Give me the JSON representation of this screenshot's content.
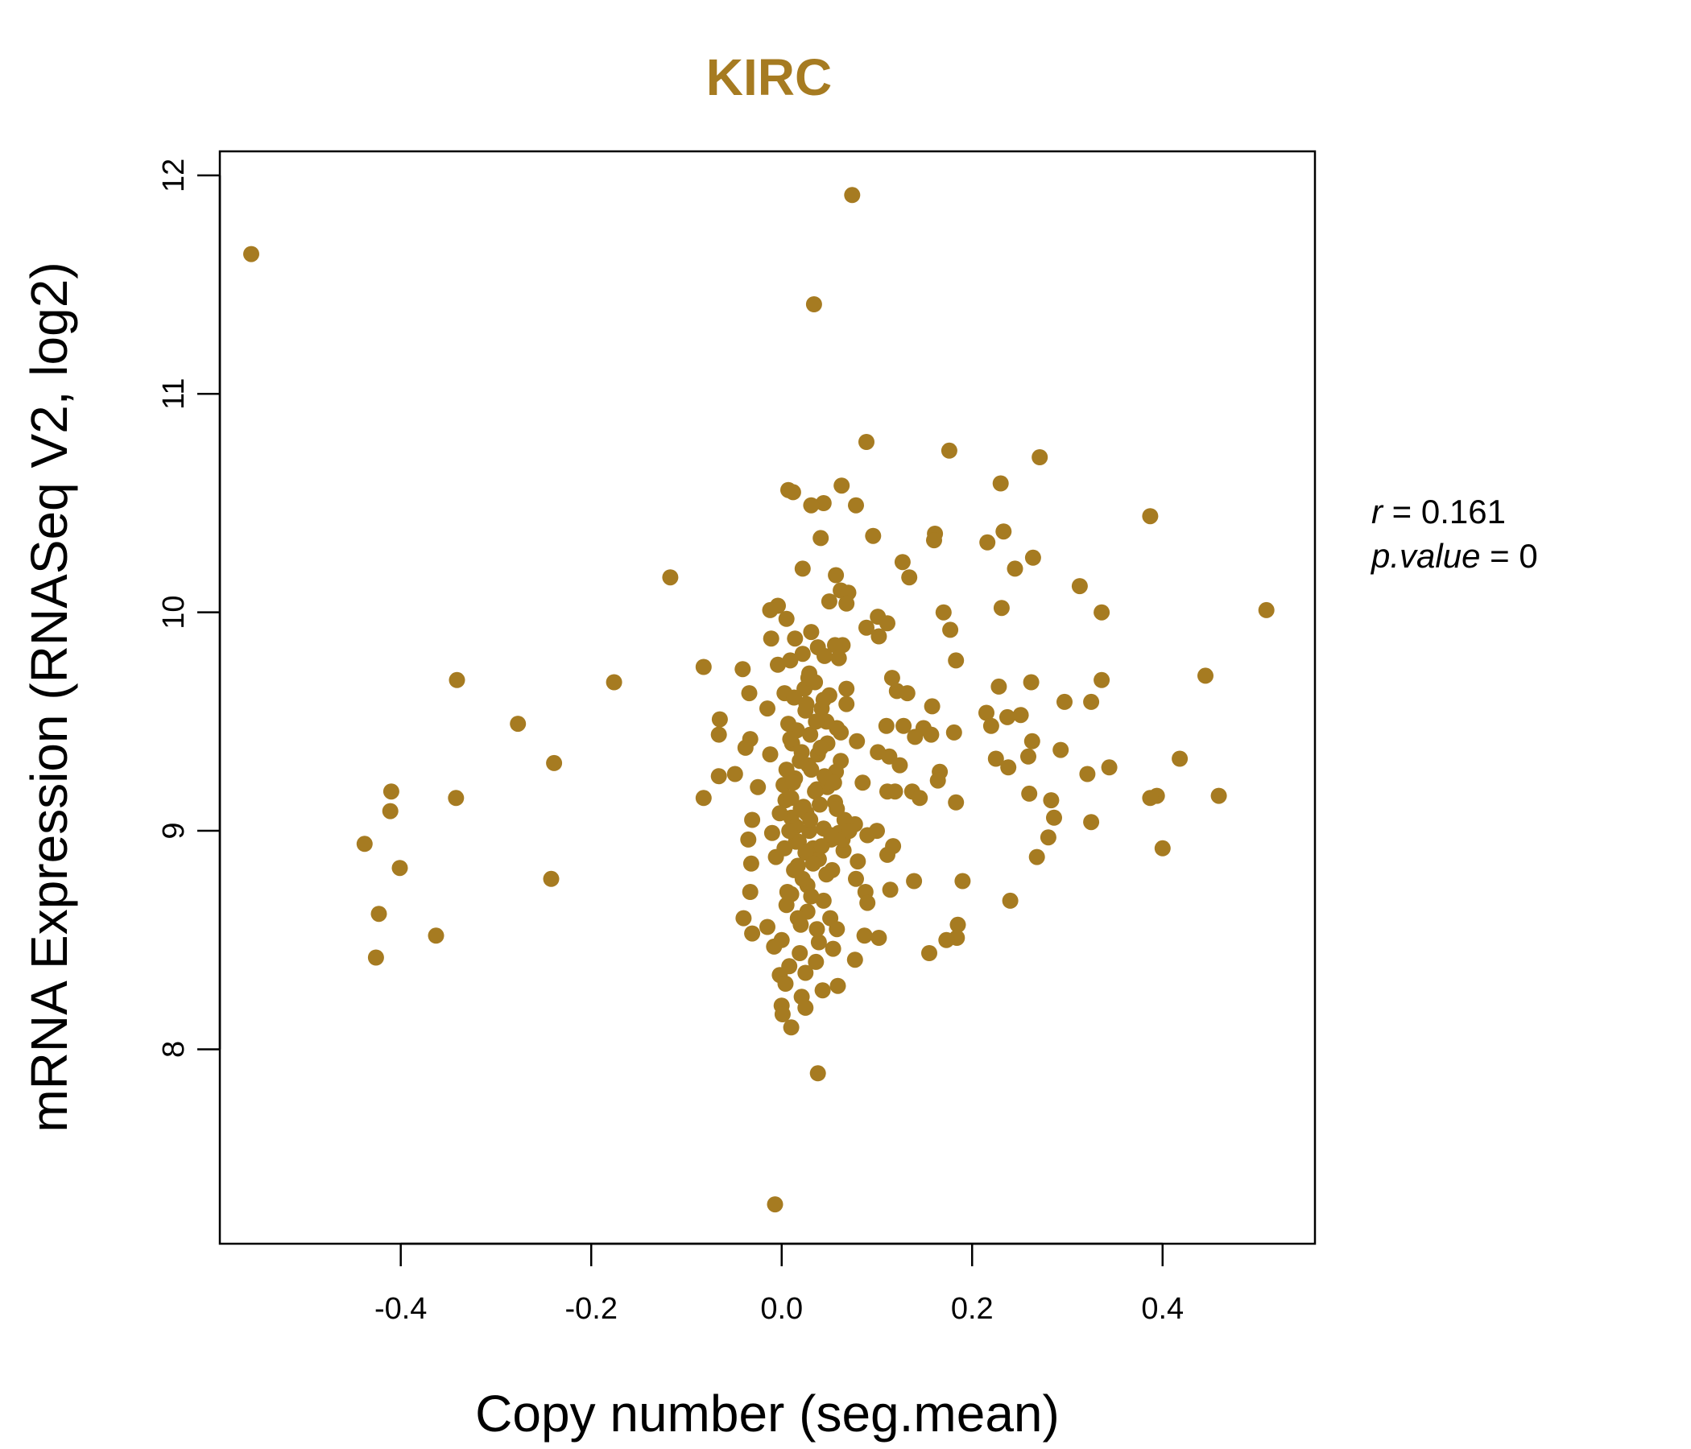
{
  "chart_data": {
    "type": "scatter",
    "title": "KIRC",
    "xlabel": "Copy number (seg.mean)",
    "ylabel": "mRNA Expression (RNASeq V2, log2)",
    "xlim": [
      -0.59,
      0.56
    ],
    "ylim": [
      7.11,
      12.11
    ],
    "x_ticks": [
      -0.4,
      -0.2,
      0.0,
      0.2,
      0.4
    ],
    "x_tick_labels": [
      "-0.4",
      "-0.2",
      "0.0",
      "0.2",
      "0.4"
    ],
    "y_ticks": [
      8,
      9,
      10,
      11,
      12
    ],
    "y_tick_labels": [
      "8",
      "9",
      "10",
      "11",
      "12"
    ],
    "point_color": "#A67B21",
    "title_color": "#A67B21",
    "stats": {
      "r_label": "r",
      "r_value": "0.161",
      "p_label": "p.value",
      "p_value": "0"
    },
    "points": [
      [
        -0.557,
        11.64
      ],
      [
        0.074,
        11.91
      ],
      [
        0.034,
        11.41
      ],
      [
        0.089,
        10.78
      ],
      [
        0.176,
        10.74
      ],
      [
        0.271,
        10.71
      ],
      [
        0.23,
        10.59
      ],
      [
        0.063,
        10.58
      ],
      [
        0.012,
        10.55
      ],
      [
        0.007,
        10.56
      ],
      [
        0.044,
        10.5
      ],
      [
        0.031,
        10.49
      ],
      [
        0.078,
        10.49
      ],
      [
        0.387,
        10.44
      ],
      [
        0.233,
        10.37
      ],
      [
        0.161,
        10.36
      ],
      [
        0.096,
        10.35
      ],
      [
        0.041,
        10.34
      ],
      [
        0.16,
        10.33
      ],
      [
        0.216,
        10.32
      ],
      [
        0.264,
        10.25
      ],
      [
        0.127,
        10.23
      ],
      [
        0.022,
        10.2
      ],
      [
        0.245,
        10.2
      ],
      [
        0.057,
        10.17
      ],
      [
        0.134,
        10.16
      ],
      [
        -0.117,
        10.16
      ],
      [
        0.313,
        10.12
      ],
      [
        0.062,
        10.1
      ],
      [
        0.07,
        10.09
      ],
      [
        0.05,
        10.05
      ],
      [
        0.068,
        10.04
      ],
      [
        -0.004,
        10.03
      ],
      [
        -0.012,
        10.01
      ],
      [
        0.231,
        10.02
      ],
      [
        0.509,
        10.01
      ],
      [
        0.336,
        10.0
      ],
      [
        0.17,
        10.0
      ],
      [
        0.101,
        9.98
      ],
      [
        0.005,
        9.97
      ],
      [
        0.089,
        9.93
      ],
      [
        0.111,
        9.95
      ],
      [
        0.031,
        9.91
      ],
      [
        0.177,
        9.92
      ],
      [
        0.102,
        9.89
      ],
      [
        0.064,
        9.85
      ],
      [
        0.014,
        9.88
      ],
      [
        -0.011,
        9.88
      ],
      [
        0.056,
        9.85
      ],
      [
        0.038,
        9.84
      ],
      [
        0.022,
        9.81
      ],
      [
        0.183,
        9.78
      ],
      [
        0.045,
        9.8
      ],
      [
        0.009,
        9.78
      ],
      [
        -0.004,
        9.76
      ],
      [
        -0.082,
        9.75
      ],
      [
        0.06,
        9.79
      ],
      [
        -0.041,
        9.74
      ],
      [
        0.029,
        9.72
      ],
      [
        0.035,
        9.68
      ],
      [
        0.116,
        9.7
      ],
      [
        0.445,
        9.71
      ],
      [
        0.336,
        9.69
      ],
      [
        -0.341,
        9.69
      ],
      [
        -0.176,
        9.68
      ],
      [
        0.262,
        9.68
      ],
      [
        0.228,
        9.66
      ],
      [
        0.068,
        9.65
      ],
      [
        0.121,
        9.64
      ],
      [
        0.132,
        9.63
      ],
      [
        -0.034,
        9.63
      ],
      [
        0.003,
        9.63
      ],
      [
        0.05,
        9.62
      ],
      [
        0.013,
        9.61
      ],
      [
        0.297,
        9.59
      ],
      [
        0.325,
        9.59
      ],
      [
        0.068,
        9.58
      ],
      [
        0.158,
        9.57
      ],
      [
        0.042,
        9.56
      ],
      [
        -0.015,
        9.56
      ],
      [
        0.025,
        9.55
      ],
      [
        0.215,
        9.54
      ],
      [
        0.251,
        9.53
      ],
      [
        0.237,
        9.52
      ],
      [
        -0.065,
        9.51
      ],
      [
        0.047,
        9.5
      ],
      [
        0.007,
        9.49
      ],
      [
        0.11,
        9.48
      ],
      [
        -0.277,
        9.49
      ],
      [
        0.128,
        9.48
      ],
      [
        0.149,
        9.47
      ],
      [
        0.22,
        9.48
      ],
      [
        0.058,
        9.47
      ],
      [
        0.062,
        9.45
      ],
      [
        0.181,
        9.45
      ],
      [
        0.03,
        9.44
      ],
      [
        0.157,
        9.44
      ],
      [
        -0.066,
        9.44
      ],
      [
        0.14,
        9.43
      ],
      [
        -0.033,
        9.42
      ],
      [
        0.079,
        9.41
      ],
      [
        0.011,
        9.4
      ],
      [
        0.263,
        9.41
      ],
      [
        -0.038,
        9.38
      ],
      [
        0.293,
        9.37
      ],
      [
        0.021,
        9.36
      ],
      [
        0.101,
        9.36
      ],
      [
        0.113,
        9.34
      ],
      [
        0.259,
        9.34
      ],
      [
        -0.012,
        9.35
      ],
      [
        0.418,
        9.33
      ],
      [
        0.225,
        9.33
      ],
      [
        0.062,
        9.32
      ],
      [
        0.124,
        9.3
      ],
      [
        -0.239,
        9.31
      ],
      [
        0.238,
        9.29
      ],
      [
        0.344,
        9.29
      ],
      [
        0.031,
        9.28
      ],
      [
        0.166,
        9.27
      ],
      [
        0.321,
        9.26
      ],
      [
        0.057,
        9.27
      ],
      [
        -0.049,
        9.26
      ],
      [
        -0.066,
        9.25
      ],
      [
        0.164,
        9.23
      ],
      [
        0.014,
        9.24
      ],
      [
        0.085,
        9.22
      ],
      [
        0.002,
        9.21
      ],
      [
        -0.025,
        9.2
      ],
      [
        0.048,
        9.2
      ],
      [
        0.037,
        9.19
      ],
      [
        -0.41,
        9.18
      ],
      [
        0.119,
        9.18
      ],
      [
        0.111,
        9.18
      ],
      [
        0.137,
        9.18
      ],
      [
        0.26,
        9.17
      ],
      [
        0.459,
        9.16
      ],
      [
        0.394,
        9.16
      ],
      [
        0.387,
        9.15
      ],
      [
        0.145,
        9.15
      ],
      [
        -0.082,
        9.15
      ],
      [
        -0.342,
        9.15
      ],
      [
        0.004,
        9.14
      ],
      [
        0.283,
        9.14
      ],
      [
        0.056,
        9.13
      ],
      [
        0.183,
        9.13
      ],
      [
        0.023,
        9.11
      ],
      [
        -0.411,
        9.09
      ],
      [
        0.026,
        9.08
      ],
      [
        0.066,
        9.05
      ],
      [
        0.286,
        9.06
      ],
      [
        0.01,
        9.06
      ],
      [
        -0.031,
        9.05
      ],
      [
        0.325,
        9.04
      ],
      [
        0.077,
        9.03
      ],
      [
        0.1,
        9.0
      ],
      [
        0.044,
        9.01
      ],
      [
        0.029,
        9.0
      ],
      [
        0.06,
        8.99
      ],
      [
        -0.01,
        8.99
      ],
      [
        0.09,
        8.98
      ],
      [
        0.28,
        8.97
      ],
      [
        -0.035,
        8.96
      ],
      [
        0.052,
        8.96
      ],
      [
        0.015,
        8.95
      ],
      [
        -0.438,
        8.94
      ],
      [
        0.117,
        8.93
      ],
      [
        0.033,
        8.92
      ],
      [
        0.4,
        8.92
      ],
      [
        0.065,
        8.91
      ],
      [
        0.111,
        8.89
      ],
      [
        -0.006,
        8.88
      ],
      [
        0.268,
        8.88
      ],
      [
        0.039,
        8.87
      ],
      [
        -0.401,
        8.83
      ],
      [
        0.08,
        8.86
      ],
      [
        -0.032,
        8.85
      ],
      [
        0.017,
        8.84
      ],
      [
        0.053,
        8.82
      ],
      [
        0.078,
        8.78
      ],
      [
        -0.242,
        8.78
      ],
      [
        0.19,
        8.77
      ],
      [
        0.139,
        8.77
      ],
      [
        0.114,
        8.73
      ],
      [
        0.027,
        8.75
      ],
      [
        -0.033,
        8.72
      ],
      [
        0.088,
        8.72
      ],
      [
        0.01,
        8.71
      ],
      [
        0.24,
        8.68
      ],
      [
        0.044,
        8.68
      ],
      [
        0.09,
        8.67
      ],
      [
        0.005,
        8.66
      ],
      [
        -0.423,
        8.62
      ],
      [
        0.027,
        8.63
      ],
      [
        -0.04,
        8.6
      ],
      [
        0.051,
        8.6
      ],
      [
        0.185,
        8.57
      ],
      [
        0.02,
        8.57
      ],
      [
        -0.015,
        8.56
      ],
      [
        0.058,
        8.55
      ],
      [
        0.087,
        8.52
      ],
      [
        0.102,
        8.51
      ],
      [
        0.184,
        8.51
      ],
      [
        -0.363,
        8.52
      ],
      [
        0.173,
        8.5
      ],
      [
        -0.031,
        8.53
      ],
      [
        0.0,
        8.5
      ],
      [
        0.039,
        8.49
      ],
      [
        -0.008,
        8.47
      ],
      [
        0.054,
        8.46
      ],
      [
        0.155,
        8.44
      ],
      [
        0.019,
        8.44
      ],
      [
        -0.426,
        8.42
      ],
      [
        0.036,
        8.4
      ],
      [
        0.077,
        8.41
      ],
      [
        0.008,
        8.38
      ],
      [
        0.025,
        8.35
      ],
      [
        -0.002,
        8.34
      ],
      [
        0.059,
        8.29
      ],
      [
        0.004,
        8.3
      ],
      [
        0.043,
        8.27
      ],
      [
        0.021,
        8.24
      ],
      [
        0.0,
        8.2
      ],
      [
        0.025,
        8.19
      ],
      [
        0.001,
        8.16
      ],
      [
        0.01,
        8.1
      ],
      [
        0.038,
        7.89
      ],
      [
        -0.007,
        7.29
      ],
      [
        0.005,
        9.28
      ],
      [
        0.012,
        9.22
      ],
      [
        0.02,
        9.1
      ],
      [
        0.03,
        9.05
      ],
      [
        0.035,
        9.18
      ],
      [
        0.04,
        9.12
      ],
      [
        0.018,
        8.95
      ],
      [
        0.025,
        8.9
      ],
      [
        0.042,
        8.93
      ],
      [
        0.015,
        9.02
      ],
      [
        0.028,
        9.3
      ],
      [
        0.048,
        9.4
      ],
      [
        0.008,
        9.0
      ],
      [
        0.033,
        8.85
      ],
      [
        0.022,
        8.78
      ],
      [
        0.045,
        9.25
      ],
      [
        0.01,
        9.15
      ],
      [
        0.038,
        9.35
      ],
      [
        0.052,
        8.98
      ],
      [
        0.003,
        8.92
      ],
      [
        0.016,
        9.46
      ],
      [
        0.036,
        9.5
      ],
      [
        0.026,
        9.58
      ],
      [
        0.058,
        9.1
      ],
      [
        0.064,
        8.96
      ],
      [
        0.071,
        9.0
      ],
      [
        0.013,
        8.82
      ],
      [
        0.031,
        8.7
      ],
      [
        0.047,
        8.8
      ],
      [
        -0.002,
        9.08
      ],
      [
        0.019,
        9.32
      ],
      [
        0.041,
        9.38
      ],
      [
        0.055,
        9.22
      ],
      [
        0.009,
        9.42
      ],
      [
        0.024,
        9.65
      ],
      [
        0.044,
        9.6
      ],
      [
        0.028,
        9.7
      ],
      [
        0.017,
        8.6
      ],
      [
        0.037,
        8.55
      ],
      [
        0.006,
        8.72
      ]
    ]
  }
}
